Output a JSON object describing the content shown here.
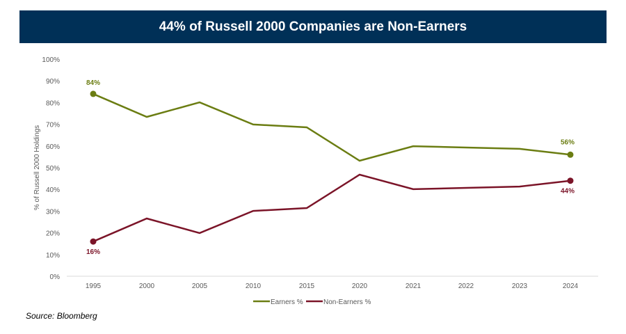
{
  "chart_data": {
    "type": "line",
    "title": "44% of Russell 2000 Companies are Non-Earners",
    "ylabel": "% of Russell 2000 Holdings",
    "xlabel": "",
    "categories": [
      "1995",
      "2000",
      "2005",
      "2010",
      "2015",
      "2020",
      "2021",
      "2022",
      "2023",
      "2024"
    ],
    "yticks": [
      "0%",
      "10%",
      "20%",
      "30%",
      "40%",
      "50%",
      "60%",
      "70%",
      "80%",
      "90%",
      "100%"
    ],
    "ylim": [
      0,
      100
    ],
    "grid": false,
    "legend_placement": "bottom",
    "series": [
      {
        "name": "Earners %",
        "color": "#6b7d12",
        "values": [
          84,
          73.4,
          80.1,
          69.9,
          68.6,
          53.2,
          59.9,
          59.3,
          58.7,
          56
        ],
        "labels": {
          "first": "84%",
          "last": "56%"
        }
      },
      {
        "name": "Non-Earners %",
        "color": "#7b1428",
        "values": [
          16,
          26.6,
          19.9,
          30.1,
          31.4,
          46.8,
          40.1,
          40.7,
          41.3,
          44
        ],
        "labels": {
          "first": "16%",
          "last": "44%"
        }
      }
    ]
  },
  "source": "Source: Bloomberg"
}
